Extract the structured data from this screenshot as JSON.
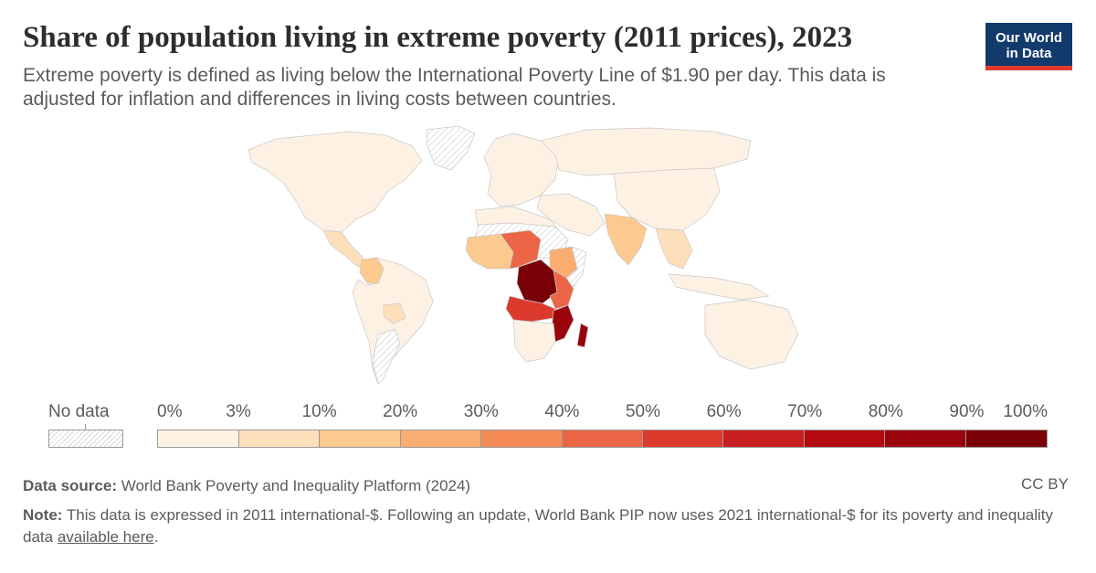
{
  "header": {
    "title": "Share of population living in extreme poverty (2011 prices), 2023",
    "subtitle": "Extreme poverty is defined as living below the International Poverty Line of $1.90 per day. This data is adjusted for inflation and differences in living costs between countries."
  },
  "logo": {
    "line1": "Our World",
    "line2": "in Data",
    "bg_color": "#123a6b",
    "accent_color": "#e03b2c"
  },
  "legend": {
    "no_data_label": "No data",
    "ticks": [
      "0%",
      "3%",
      "10%",
      "20%",
      "30%",
      "40%",
      "50%",
      "60%",
      "70%",
      "80%",
      "90%",
      "100%"
    ],
    "bins": [
      {
        "from": 0,
        "to": 3,
        "color": "#fdf1e4"
      },
      {
        "from": 3,
        "to": 10,
        "color": "#fde0bb"
      },
      {
        "from": 10,
        "to": 20,
        "color": "#fcc98f"
      },
      {
        "from": 20,
        "to": 30,
        "color": "#f9ad71"
      },
      {
        "from": 30,
        "to": 40,
        "color": "#f38a55"
      },
      {
        "from": 40,
        "to": 50,
        "color": "#eb6546"
      },
      {
        "from": 50,
        "to": 60,
        "color": "#db3a2c"
      },
      {
        "from": 60,
        "to": 70,
        "color": "#c71f1f"
      },
      {
        "from": 70,
        "to": 80,
        "color": "#b30a0f"
      },
      {
        "from": 80,
        "to": 90,
        "color": "#9a040c"
      },
      {
        "from": 90,
        "to": 100,
        "color": "#7a0008"
      }
    ]
  },
  "map_regions": [
    {
      "name": "north-america",
      "bin": 0
    },
    {
      "name": "central-america",
      "bin": 1
    },
    {
      "name": "south-america",
      "bin": 0
    },
    {
      "name": "colombia",
      "bin": 2
    },
    {
      "name": "bolivia",
      "bin": 1
    },
    {
      "name": "argentina",
      "bin": "nodata"
    },
    {
      "name": "europe",
      "bin": 0
    },
    {
      "name": "russia",
      "bin": 0
    },
    {
      "name": "china",
      "bin": 0
    },
    {
      "name": "india",
      "bin": 2
    },
    {
      "name": "southeast-asia",
      "bin": 1
    },
    {
      "name": "indonesia",
      "bin": 0
    },
    {
      "name": "australia",
      "bin": 0
    },
    {
      "name": "north-africa",
      "bin": 0
    },
    {
      "name": "sahara",
      "bin": "nodata"
    },
    {
      "name": "west-africa",
      "bin": 2
    },
    {
      "name": "nigeria-niger",
      "bin": 5
    },
    {
      "name": "ethiopia",
      "bin": 3
    },
    {
      "name": "somalia",
      "bin": "nodata"
    },
    {
      "name": "dr-congo",
      "bin": 10
    },
    {
      "name": "angola-zambia",
      "bin": 6
    },
    {
      "name": "tanzania-kenya",
      "bin": 5
    },
    {
      "name": "mozambique-malawi",
      "bin": 9
    },
    {
      "name": "southern-africa",
      "bin": 0
    },
    {
      "name": "greenland",
      "bin": "nodata"
    },
    {
      "name": "middle-east",
      "bin": 0
    },
    {
      "name": "madagascar",
      "bin": 9
    }
  ],
  "footer": {
    "source_label": "Data source:",
    "source_text": "World Bank Poverty and Inequality Platform (2024)",
    "license": "CC BY",
    "note_label": "Note:",
    "note_text": "This data is expressed in 2011 international-$. Following an update, World Bank PIP now uses 2021 international-$ for its poverty and inequality data",
    "note_link": "available here",
    "note_end": "."
  }
}
